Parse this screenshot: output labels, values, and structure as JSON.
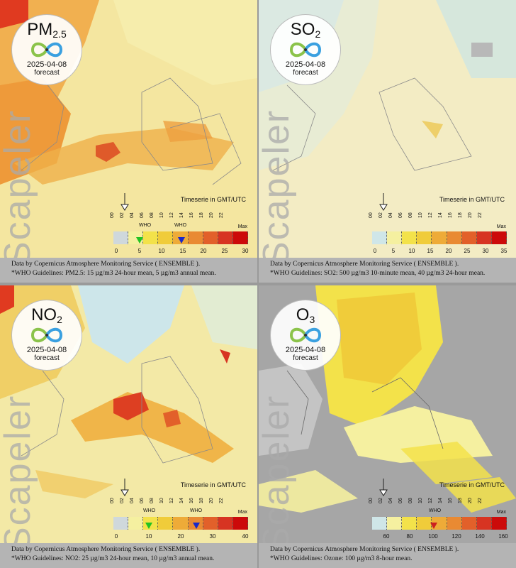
{
  "panels": [
    {
      "pollutant": "PM",
      "sub": "2.5",
      "date": "2025-04-08",
      "forecast": "forecast",
      "watermark": "Scapeler",
      "timeserie": "Timeserie in GMT/UTC",
      "ticks": [
        "00",
        "02",
        "04",
        "06",
        "08",
        "10",
        "12",
        "14",
        "16",
        "18",
        "20",
        "22"
      ],
      "max": "Max",
      "scale_numbers": [
        "0",
        "5",
        "10",
        "15",
        "20",
        "25",
        "30"
      ],
      "who_labels": [
        "WHO",
        "WHO"
      ],
      "footer_line1": "Data by Copernicus Atmosphere Monitoring Service ( ENSEMBLE ).",
      "footer_line2": "*WHO Guidelines: PM2.5: 15 µg/m3 24-hour mean, 5 µg/m3 annual mean."
    },
    {
      "pollutant": "SO",
      "sub": "2",
      "date": "2025-04-08",
      "forecast": "forecast",
      "watermark": "Scapeler",
      "timeserie": "Timeserie in GMT/UTC",
      "ticks": [
        "00",
        "02",
        "04",
        "06",
        "08",
        "10",
        "12",
        "14",
        "16",
        "18",
        "20",
        "22"
      ],
      "max": "Max",
      "scale_numbers": [
        "0",
        "5",
        "10",
        "15",
        "20",
        "25",
        "30",
        "35"
      ],
      "who_labels": [],
      "footer_line1": "Data by Copernicus Atmosphere Monitoring Service ( ENSEMBLE ).",
      "footer_line2": "*WHO Guidelines: SO2: 500 µg/m3 10-minute mean, 40 µg/m3 24-hour mean."
    },
    {
      "pollutant": "NO",
      "sub": "2",
      "date": "2025-04-08",
      "forecast": "forecast",
      "watermark": "Scapeler",
      "timeserie": "Timeserie in GMT/UTC",
      "ticks": [
        "00",
        "02",
        "04",
        "06",
        "08",
        "10",
        "12",
        "14",
        "16",
        "18",
        "20",
        "22"
      ],
      "max": "Max",
      "scale_numbers": [
        "0",
        "10",
        "20",
        "30",
        "40"
      ],
      "who_labels": [
        "WHO",
        "WHO"
      ],
      "footer_line1": "Data by Copernicus Atmosphere Monitoring Service ( ENSEMBLE ).",
      "footer_line2": "*WHO Guidelines: NO2: 25 µg/m3 24-hour mean, 10 µg/m3 annual mean."
    },
    {
      "pollutant": "O",
      "sub": "3",
      "date": "2025-04-08",
      "forecast": "forecast",
      "watermark": "Scapeler",
      "timeserie": "Timeserie in GMT/UTC",
      "ticks": [
        "00",
        "02",
        "04",
        "06",
        "08",
        "10",
        "12",
        "14",
        "16",
        "18",
        "20",
        "22"
      ],
      "max": "Max",
      "scale_numbers": [
        "60",
        "80",
        "100",
        "120",
        "140",
        "160"
      ],
      "who_labels": [
        "WHO"
      ],
      "footer_line1": "Data by Copernicus Atmosphere Monitoring Service ( ENSEMBLE ).",
      "footer_line2": "*WHO Guidelines: Ozone: 100 µg/m3 8-hour mean."
    }
  ],
  "colors": {
    "scale": [
      "#cfe6e8",
      "#f5f0a0",
      "#f3e24a",
      "#f0cc3a",
      "#eeab38",
      "#e98a33",
      "#e2602a",
      "#d73422",
      "#cc0a0a"
    ],
    "who_green": "#22c322",
    "who_blue": "#1b28c8",
    "who_red": "#cc2020"
  }
}
